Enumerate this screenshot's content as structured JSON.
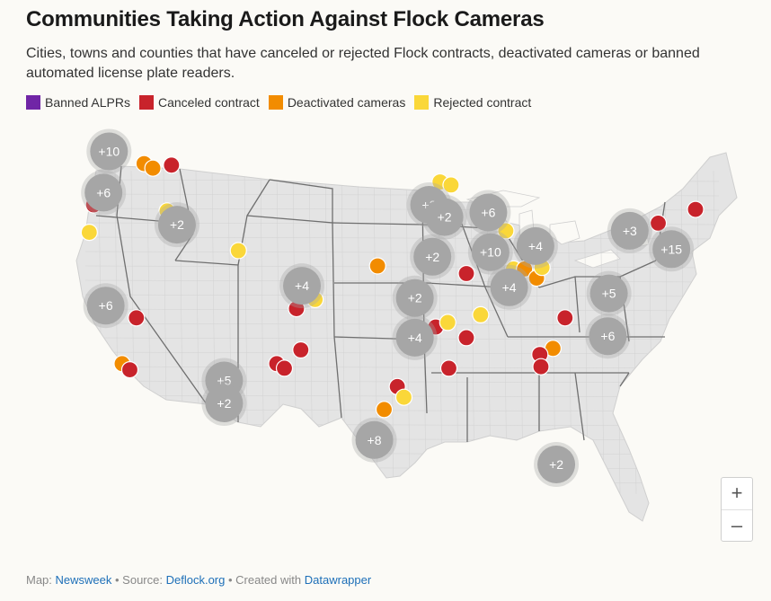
{
  "title": "Communities Taking Action Against Flock Cameras",
  "subtitle": "Cities, towns and counties that have canceled or rejected Flock contracts, deactivated cameras or banned automated license plate readers.",
  "legend": [
    {
      "label": "Banned ALPRs",
      "color": "#7025a6"
    },
    {
      "label": "Canceled contract",
      "color": "#c8232b"
    },
    {
      "label": "Deactivated cameras",
      "color": "#f28c00"
    },
    {
      "label": "Rejected contract",
      "color": "#fad739"
    }
  ],
  "colors": {
    "cluster": "#a6a6a6",
    "land": "#e4e4e4",
    "state_border": "#6f6f6f",
    "background": "#fbfaf6"
  },
  "clusters": [
    {
      "label": "+10",
      "lon": -122.5,
      "lat": 48.5
    },
    {
      "label": "+6",
      "lon": -123.0,
      "lat": 45.8
    },
    {
      "label": "+2",
      "lon": -116.3,
      "lat": 43.7
    },
    {
      "label": "+6",
      "lon": -122.8,
      "lat": 38.4
    },
    {
      "label": "+5",
      "lon": -112.0,
      "lat": 33.5
    },
    {
      "label": "+2",
      "lon": -112.0,
      "lat": 32.0
    },
    {
      "label": "+4",
      "lon": -104.9,
      "lat": 39.7
    },
    {
      "label": "+3",
      "lon": -93.3,
      "lat": 45.0
    },
    {
      "label": "+2",
      "lon": -91.9,
      "lat": 44.2
    },
    {
      "label": "+6",
      "lon": -87.9,
      "lat": 44.5
    },
    {
      "label": "+2",
      "lon": -93.0,
      "lat": 41.6
    },
    {
      "label": "+10",
      "lon": -87.7,
      "lat": 41.9
    },
    {
      "label": "+4",
      "lon": -83.6,
      "lat": 42.3
    },
    {
      "label": "+2",
      "lon": -94.6,
      "lat": 38.9
    },
    {
      "label": "+4",
      "lon": -86.0,
      "lat": 39.6
    },
    {
      "label": "+4",
      "lon": -94.6,
      "lat": 36.3
    },
    {
      "label": "+3",
      "lon": -75.0,
      "lat": 43.3
    },
    {
      "label": "+15",
      "lon": -71.2,
      "lat": 42.1
    },
    {
      "label": "+5",
      "lon": -76.9,
      "lat": 39.2
    },
    {
      "label": "+6",
      "lon": -77.0,
      "lat": 36.4
    },
    {
      "label": "+8",
      "lon": -98.3,
      "lat": 29.6
    },
    {
      "label": "+2",
      "lon": -81.7,
      "lat": 28.0
    }
  ],
  "points": [
    {
      "type": "Deactivated cameras",
      "lon": -119.3,
      "lat": 47.7
    },
    {
      "type": "Deactivated cameras",
      "lon": -118.5,
      "lat": 47.4
    },
    {
      "type": "Canceled contract",
      "lon": -116.8,
      "lat": 47.6
    },
    {
      "type": "Canceled contract",
      "lon": -123.9,
      "lat": 45.0
    },
    {
      "type": "Rejected contract",
      "lon": -124.3,
      "lat": 43.2
    },
    {
      "type": "Rejected contract",
      "lon": -117.2,
      "lat": 44.6
    },
    {
      "type": "Rejected contract",
      "lon": -110.7,
      "lat": 42.0
    },
    {
      "type": "Canceled contract",
      "lon": -120.0,
      "lat": 37.6
    },
    {
      "type": "Deactivated cameras",
      "lon": -121.3,
      "lat": 34.6
    },
    {
      "type": "Canceled contract",
      "lon": -120.6,
      "lat": 34.2
    },
    {
      "type": "Rejected contract",
      "lon": -103.7,
      "lat": 38.8
    },
    {
      "type": "Canceled contract",
      "lon": -105.4,
      "lat": 38.2
    },
    {
      "type": "Canceled contract",
      "lon": -105.0,
      "lat": 35.5
    },
    {
      "type": "Canceled contract",
      "lon": -107.2,
      "lat": 34.6
    },
    {
      "type": "Canceled contract",
      "lon": -106.5,
      "lat": 34.3
    },
    {
      "type": "Deactivated cameras",
      "lon": -98.0,
      "lat": 41.0
    },
    {
      "type": "Rejected contract",
      "lon": -92.3,
      "lat": 46.5
    },
    {
      "type": "Rejected contract",
      "lon": -91.3,
      "lat": 46.3
    },
    {
      "type": "Rejected contract",
      "lon": -86.3,
      "lat": 43.3
    },
    {
      "type": "Canceled contract",
      "lon": -89.9,
      "lat": 40.5
    },
    {
      "type": "Rejected contract",
      "lon": -85.6,
      "lat": 40.8
    },
    {
      "type": "Deactivated cameras",
      "lon": -84.6,
      "lat": 40.8
    },
    {
      "type": "Deactivated cameras",
      "lon": -83.5,
      "lat": 40.2
    },
    {
      "type": "Rejected contract",
      "lon": -83.0,
      "lat": 40.9
    },
    {
      "type": "Rejected contract",
      "lon": -88.6,
      "lat": 37.8
    },
    {
      "type": "Canceled contract",
      "lon": -92.7,
      "lat": 37.0
    },
    {
      "type": "Rejected contract",
      "lon": -91.6,
      "lat": 37.3
    },
    {
      "type": "Canceled contract",
      "lon": -89.9,
      "lat": 36.3
    },
    {
      "type": "Canceled contract",
      "lon": -91.5,
      "lat": 34.3
    },
    {
      "type": "Canceled contract",
      "lon": -80.9,
      "lat": 37.6
    },
    {
      "type": "Deactivated cameras",
      "lon": -82.0,
      "lat": 35.6
    },
    {
      "type": "Canceled contract",
      "lon": -83.2,
      "lat": 35.2
    },
    {
      "type": "Canceled contract",
      "lon": -83.1,
      "lat": 34.4
    },
    {
      "type": "Canceled contract",
      "lon": -96.2,
      "lat": 33.1
    },
    {
      "type": "Rejected contract",
      "lon": -95.6,
      "lat": 32.4
    },
    {
      "type": "Deactivated cameras",
      "lon": -97.4,
      "lat": 31.6
    },
    {
      "type": "Canceled contract",
      "lon": -72.4,
      "lat": 43.8
    },
    {
      "type": "Canceled contract",
      "lon": -69.0,
      "lat": 44.7
    }
  ],
  "zoom": {
    "in_label": "+",
    "out_label": "–"
  },
  "footer": {
    "map_prefix": "Map:",
    "map_source": "Newsweek",
    "sep1": "• Source:",
    "data_source": "Deflock.org",
    "sep2": "• Created with",
    "tool": "Datawrapper"
  }
}
